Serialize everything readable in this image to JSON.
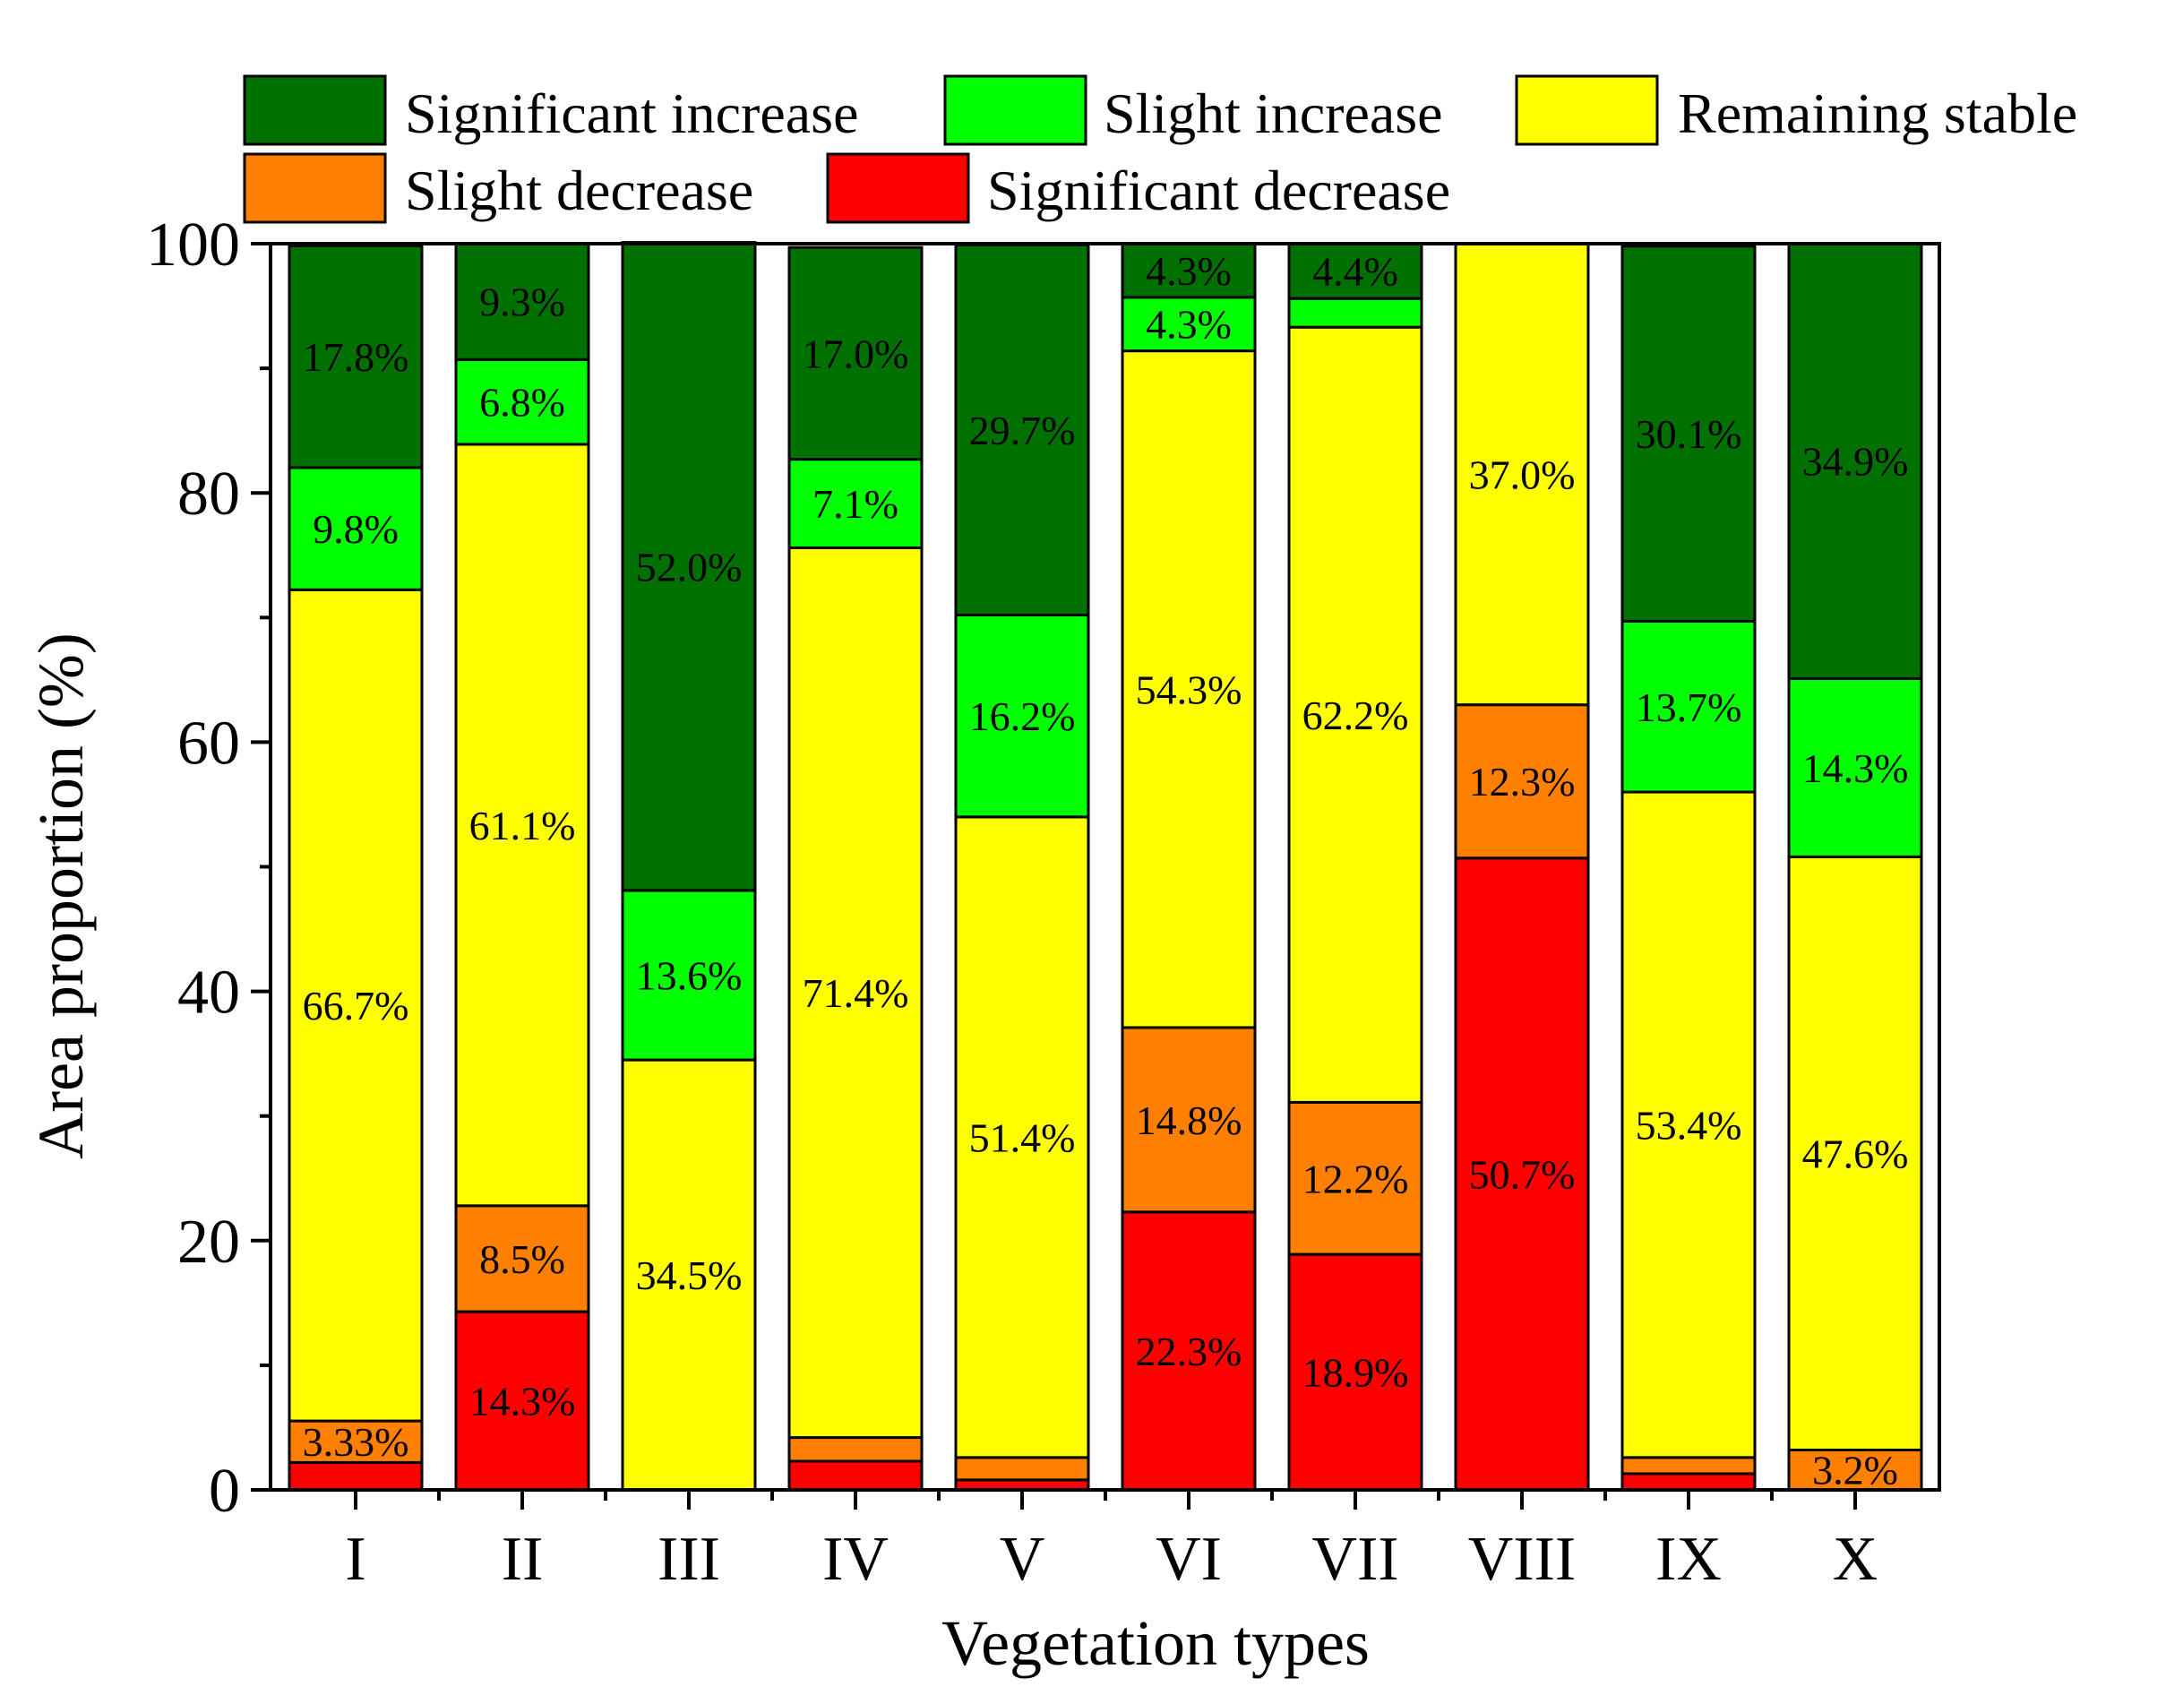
{
  "chart_data": {
    "type": "bar",
    "stacked": true,
    "ylabel": "Area proportion (%)",
    "xlabel": "Vegetation types",
    "ylim": [
      0,
      100
    ],
    "yticks": [
      "0",
      "20",
      "40",
      "60",
      "80",
      "100"
    ],
    "categories": [
      "I",
      "II",
      "III",
      "IV",
      "V",
      "VI",
      "VII",
      "VIII",
      "IX",
      "X"
    ],
    "series": [
      {
        "name": "Significant decrease",
        "color": "#ff0000",
        "values": [
          2.2,
          14.3,
          0,
          2.3,
          0.8,
          22.3,
          18.9,
          50.7,
          1.3,
          0
        ],
        "labels": [
          "",
          "14.3%",
          "",
          "",
          "",
          "22.3%",
          "18.9%",
          "50.7%",
          "",
          ""
        ]
      },
      {
        "name": "Slight decrease",
        "color": "#ff8000",
        "values": [
          3.33,
          8.5,
          0,
          1.9,
          1.8,
          14.8,
          12.2,
          12.3,
          1.3,
          3.2
        ],
        "labels": [
          "3.33%",
          "8.5%",
          "",
          "",
          "",
          "14.8%",
          "12.2%",
          "12.3%",
          "",
          "3.2%"
        ]
      },
      {
        "name": "Remaining stable",
        "color": "#ffff00",
        "values": [
          66.7,
          61.1,
          34.5,
          71.4,
          51.4,
          54.3,
          62.2,
          37.0,
          53.4,
          47.6
        ],
        "labels": [
          "66.7%",
          "61.1%",
          "34.5%",
          "71.4%",
          "51.4%",
          "54.3%",
          "62.2%",
          "37.0%",
          "53.4%",
          "47.6%"
        ]
      },
      {
        "name": "Slight increase",
        "color": "#00ff00",
        "values": [
          9.8,
          6.8,
          13.6,
          7.1,
          16.2,
          4.3,
          2.3,
          0,
          13.7,
          14.3
        ],
        "labels": [
          "9.8%",
          "6.8%",
          "13.6%",
          "7.1%",
          "16.2%",
          "4.3%",
          "",
          "",
          "13.7%",
          "14.3%"
        ]
      },
      {
        "name": "Significant increase",
        "color": "#007000",
        "values": [
          17.8,
          9.3,
          52.0,
          17.0,
          29.7,
          4.3,
          4.4,
          0,
          30.1,
          34.9
        ],
        "labels": [
          "17.8%",
          "9.3%",
          "52.0%",
          "17.0%",
          "29.7%",
          "4.3%",
          "4.4%",
          "",
          "30.1%",
          "34.9%"
        ]
      }
    ],
    "legend": [
      {
        "name": "Significant increase",
        "color": "#007000"
      },
      {
        "name": "Slight increase",
        "color": "#00ff00"
      },
      {
        "name": "Remaining stable",
        "color": "#ffff00"
      },
      {
        "name": "Slight decrease",
        "color": "#ff8000"
      },
      {
        "name": "Significant decrease",
        "color": "#ff0000"
      }
    ]
  }
}
